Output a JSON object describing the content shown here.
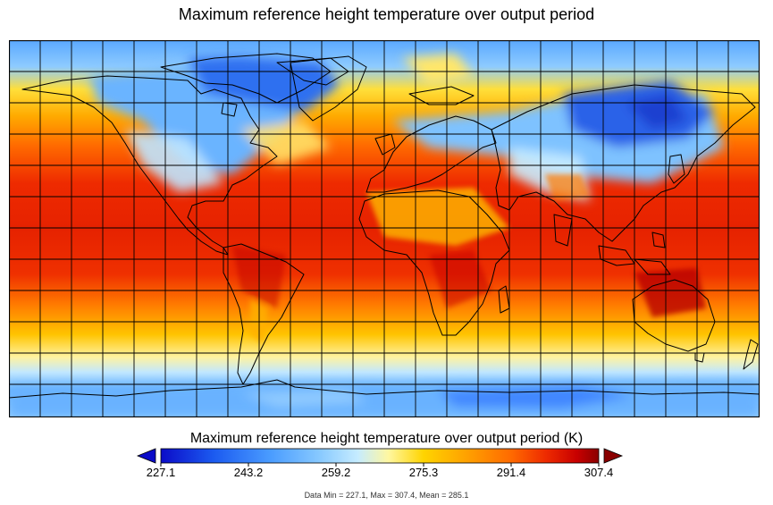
{
  "title": "Maximum reference height temperature over output period",
  "colorbar": {
    "title": "Maximum reference height temperature over output period (K)",
    "ticks": [
      "227.1",
      "243.2",
      "259.2",
      "275.3",
      "291.4",
      "307.4"
    ],
    "min": 227.1,
    "max": 307.4,
    "colors": [
      "#0b0bc8",
      "#1b5af0",
      "#4a9cff",
      "#86c8ff",
      "#c6ecff",
      "#fff7a0",
      "#ffd400",
      "#ffa000",
      "#ff6a00",
      "#ee2a00",
      "#c80000",
      "#8a0000"
    ]
  },
  "stats": "Data Min = 227.1, Max = 307.4, Mean = 285.1",
  "chart_data": {
    "type": "heatmap",
    "variable": "Maximum reference height temperature over output period",
    "units": "K",
    "range": [
      227.1,
      307.4
    ],
    "mean": 285.1,
    "grid": true,
    "legend_placement": "bottom"
  }
}
